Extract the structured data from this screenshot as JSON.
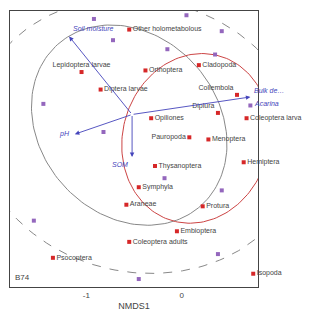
{
  "chart_data": {
    "type": "scatter",
    "xlabel": "NMDS1",
    "xlim": [
      -1.8,
      0.8
    ],
    "ylim": [
      -3.0,
      2.2
    ],
    "xticks": [
      -1,
      0
    ],
    "yticks": [],
    "tick_labels": "x",
    "grid": false,
    "series": [
      {
        "marker": "square",
        "labels": [
          "Other holometabolous",
          "Lepidoptera larvae",
          "Diptera larvae",
          "Orthoptera",
          "Cladopoda",
          "Collembola",
          "Diplura",
          "Coleoptera larva",
          "Opiliones",
          "Pauropoda",
          "Menoptera",
          "Hemiptera",
          "Thysanoptera",
          "Symphyla",
          "Araneae",
          "Protura",
          "Embioptera",
          "Coleoptera adults",
          "Psocoptera",
          "Isopoda"
        ],
        "x": [
          -0.55,
          -1.05,
          -0.85,
          -0.38,
          0.18,
          0.58,
          0.38,
          0.68,
          -0.32,
          0.08,
          0.28,
          0.65,
          -0.28,
          -0.45,
          -0.58,
          0.22,
          -0.05,
          -0.55,
          -1.35,
          0.75
        ],
        "y": [
          1.85,
          1.05,
          0.72,
          1.08,
          1.18,
          0.62,
          0.28,
          0.18,
          0.18,
          -0.18,
          -0.22,
          -0.65,
          -0.72,
          -1.12,
          -1.45,
          -1.48,
          -1.95,
          -2.15,
          -2.45,
          -2.75
        ]
      },
      {
        "marker": "square",
        "x": [
          -0.92,
          0.05,
          0.42,
          -0.72,
          -0.15,
          0.35,
          -1.45,
          0.72,
          -0.82,
          -0.18,
          0.42,
          -1.55,
          0.38,
          -0.45
        ],
        "y": [
          2.05,
          2.12,
          1.82,
          1.65,
          1.48,
          1.38,
          0.45,
          0.42,
          -0.08,
          -0.95,
          -1.18,
          -1.75,
          -2.38,
          -2.85
        ]
      }
    ],
    "arrows": {
      "origin": [
        -0.52,
        0.25
      ],
      "color": "#4444bb",
      "items": [
        {
          "labels": [
            "Soil moisture"
          ],
          "x": -1.18,
          "y": 1.72
        },
        {
          "labels": [
            "pH"
          ],
          "x": -1.12,
          "y": -0.12
        },
        {
          "labels": [
            "SOM"
          ],
          "x": -0.52,
          "y": -0.55
        },
        {
          "labels": [
            "Bulk de…",
            "Acarina"
          ],
          "x": 0.72,
          "y": 0.58
        }
      ]
    },
    "ellipses": [
      {
        "cx": -0.45,
        "cy": -0.15,
        "width": 3.4,
        "height": 5.2,
        "angle": 5,
        "color": "#888888",
        "line_style": "dashed"
      },
      {
        "cx": -0.55,
        "cy": 0.05,
        "width": 2.0,
        "height": 3.8,
        "angle": 8,
        "color": "#888888",
        "line_style": "solid"
      },
      {
        "cx": 0.15,
        "cy": -0.2,
        "width": 1.55,
        "height": 3.2,
        "angle": -3,
        "color": "#cc4444",
        "line_style": "solid"
      }
    ],
    "annotations": [
      {
        "text": "B74"
      }
    ]
  }
}
